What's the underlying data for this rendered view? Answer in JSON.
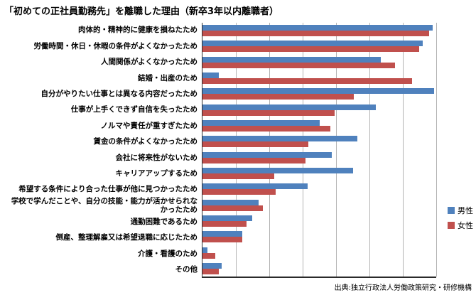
{
  "title": "「初めての正社員勤務先」を離職した理由（新卒3年以内離職者）",
  "source": "出典:独立行政法人労働政策研究・研修機構",
  "colors": {
    "male": "#4f81bd",
    "female": "#c0504d",
    "gridline": "#b3b3b3",
    "axis": "#2a2a2a"
  },
  "legend": {
    "male_label": "男性",
    "female_label": "女性",
    "position": "right"
  },
  "chart_data": {
    "type": "bar",
    "orientation": "horizontal",
    "title": "「初めての正社員勤務先」を離職した理由（新卒3年以内離職者）",
    "xlabel": "",
    "ylabel": "",
    "xlim": [
      0,
      35
    ],
    "gridline_interval": 5,
    "grid": true,
    "legend_position": "right",
    "categories": [
      "肉体的・精神的に健康を損ねたため",
      "労働時間・休日・休暇の条件がよくなかったため",
      "人間関係がよくなかったため",
      "結婚・出産のため",
      "自分がやりたい仕事とは異なる内容だったため",
      "仕事が上手くできず自信を失ったため",
      "ノルマや責任が重すぎたため",
      "賃金の条件がよくなかったため",
      "会社に将来性がないため",
      "キャリアアップするため",
      "希望する条件により合った仕事が他に見つかったため",
      "学校で学んだことや、自分の技能・能力が活かせられなかったため",
      "通勤困難であるため",
      "倒産、整理解雇又は希望退職に応じたため",
      "介護・看護のため",
      "その他"
    ],
    "series": [
      {
        "name": "男性",
        "color": "#4f81bd",
        "values": [
          34.5,
          33.0,
          26.7,
          2.4,
          34.7,
          26.0,
          17.5,
          23.2,
          19.4,
          22.5,
          15.7,
          8.4,
          7.4,
          6.0,
          0.7,
          2.9
        ]
      },
      {
        "name": "女性",
        "color": "#c0504d",
        "values": [
          33.9,
          32.4,
          28.8,
          31.4,
          22.7,
          19.8,
          19.1,
          15.9,
          15.4,
          10.7,
          11.0,
          9.0,
          6.6,
          6.0,
          1.9,
          2.4
        ]
      }
    ]
  }
}
